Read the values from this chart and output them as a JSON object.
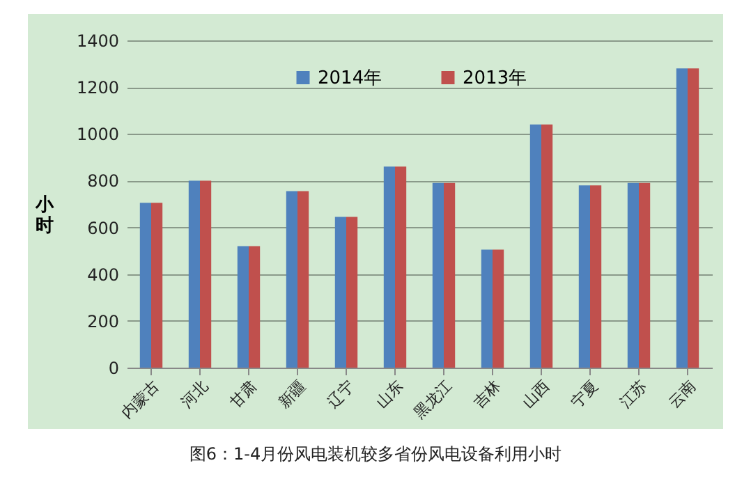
{
  "chart_data": {
    "type": "bar",
    "ylabel": "小时",
    "categories": [
      "内蒙古",
      "河北",
      "甘肃",
      "新疆",
      "辽宁",
      "山东",
      "黑龙江",
      "吉林",
      "山西",
      "宁夏",
      "江苏",
      "云南"
    ],
    "series": [
      {
        "name": "2014年",
        "color": "#4f81bd",
        "values": [
          705,
          800,
          520,
          755,
          645,
          860,
          790,
          505,
          1040,
          780,
          790,
          1280
        ]
      },
      {
        "name": "2013年",
        "color": "#c0504d",
        "values": [
          705,
          800,
          520,
          755,
          645,
          860,
          790,
          505,
          1040,
          780,
          790,
          1280
        ]
      }
    ],
    "ylim": [
      0,
      1400
    ],
    "yticks": [
      0,
      200,
      400,
      600,
      800,
      1000,
      1200,
      1400
    ],
    "grid": "y",
    "legend": "top",
    "annotations": [
      "图6：1-4月份风电装机较多省份风电设备利用小时"
    ]
  }
}
